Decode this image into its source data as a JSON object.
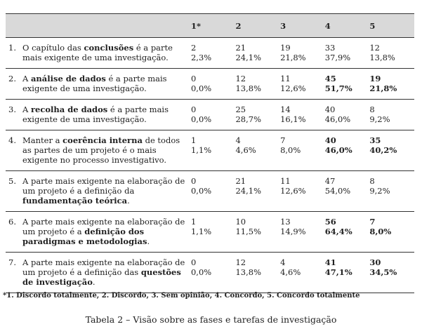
{
  "table": {
    "headers": [
      "",
      "1*",
      "2",
      "3",
      "4",
      "5"
    ],
    "rows": [
      {
        "num": "1.",
        "pre": "O capítulo das ",
        "bold": "conclusões",
        "post": " é a parte mais exigente de uma investigação.",
        "cells": [
          [
            "2",
            "2,3%"
          ],
          [
            "21",
            "24,1%"
          ],
          [
            "19",
            "21,8%"
          ],
          [
            "33",
            "37,9%"
          ],
          [
            "12",
            "13,8%"
          ]
        ],
        "bold_cols": []
      },
      {
        "num": "2.",
        "pre": "A ",
        "bold": "análise de dados",
        "post": " é a parte mais exigente de uma investigação.",
        "cells": [
          [
            "0",
            "0,0%"
          ],
          [
            "12",
            "13,8%"
          ],
          [
            "11",
            "12,6%"
          ],
          [
            "45",
            "51,7%"
          ],
          [
            "19",
            "21,8%"
          ]
        ],
        "bold_cols": [
          3,
          4
        ]
      },
      {
        "num": "3.",
        "pre": "A ",
        "bold": "recolha de dados",
        "post": " é a parte mais exigente de uma investigação.",
        "cells": [
          [
            "0",
            "0,0%"
          ],
          [
            "25",
            "28,7%"
          ],
          [
            "14",
            "16,1%"
          ],
          [
            "40",
            "46,0%"
          ],
          [
            "8",
            "9,2%"
          ]
        ],
        "bold_cols": []
      },
      {
        "num": "4.",
        "pre": "Manter a ",
        "bold": "coerência interna",
        "post": " de todos as partes de um projeto é o mais exigente no processo investigativo.",
        "cells": [
          [
            "1",
            "1,1%"
          ],
          [
            "4",
            "4,6%"
          ],
          [
            "7",
            "8,0%"
          ],
          [
            "40",
            "46,0%"
          ],
          [
            "35",
            "40,2%"
          ]
        ],
        "bold_cols": [
          3,
          4
        ]
      },
      {
        "num": "5.",
        "pre": "A parte mais exigente na elaboração de um projeto é a definição da ",
        "bold": "fundamentação teórica",
        "post": ".",
        "cells": [
          [
            "0",
            "0,0%"
          ],
          [
            "21",
            "24,1%"
          ],
          [
            "11",
            "12,6%"
          ],
          [
            "47",
            "54,0%"
          ],
          [
            "8",
            "9,2%"
          ]
        ],
        "bold_cols": []
      },
      {
        "num": "6.",
        "pre": "A parte mais exigente na elaboração de um projeto é a ",
        "bold": "definição dos paradigmas e metodologias",
        "post": ".",
        "cells": [
          [
            "1",
            "1,1%"
          ],
          [
            "10",
            "11,5%"
          ],
          [
            "13",
            "14,9%"
          ],
          [
            "56",
            "64,4%"
          ],
          [
            "7",
            "8,0%"
          ]
        ],
        "bold_cols": [
          3,
          4
        ]
      },
      {
        "num": "7.",
        "pre": "A parte mais exigente na elaboração de um projeto é a definição das ",
        "bold": "questões de investigação",
        "post": ".",
        "cells": [
          [
            "0",
            "0,0%"
          ],
          [
            "12",
            "13,8%"
          ],
          [
            "4",
            "4,6%"
          ],
          [
            "41",
            "47,1%"
          ],
          [
            "30",
            "34,5%"
          ]
        ],
        "bold_cols": [
          3,
          4
        ]
      }
    ]
  },
  "footnote": "*1. Discordo totalmente, 2. Discordo, 3. Sem opinião, 4. Concordo, 5. Concordo totalmente",
  "caption": "Tabela 2 – Visão sobre as fases e tarefas de investigação"
}
